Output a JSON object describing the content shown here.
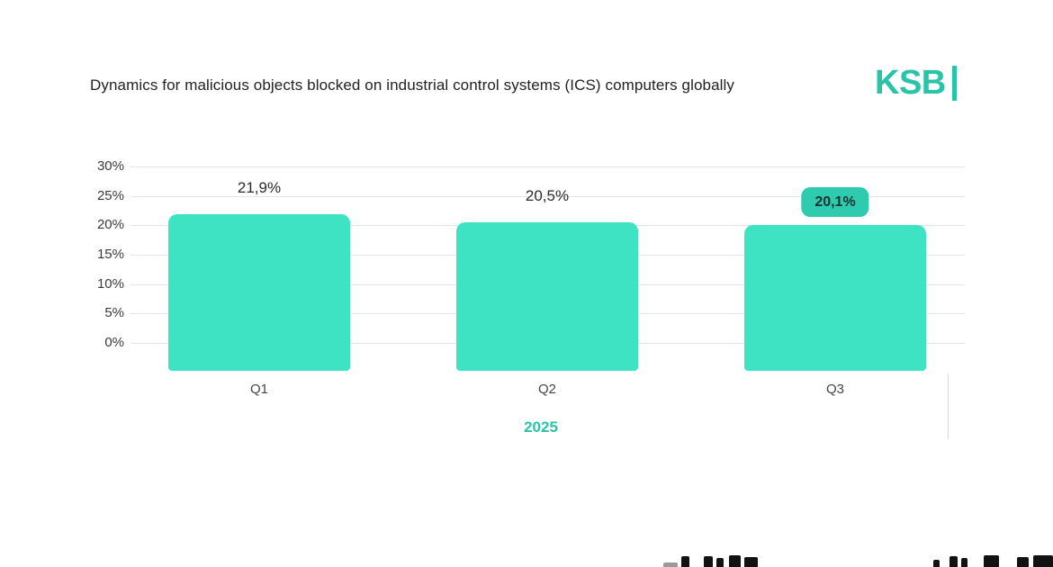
{
  "header": {
    "title": "Dynamics for malicious objects blocked on industrial control systems (ICS) computers globally",
    "logo": "KSB"
  },
  "chart_data": {
    "type": "bar",
    "title": "Dynamics for malicious objects blocked on industrial control systems (ICS) computers globally",
    "categories": [
      "Q1",
      "Q2",
      "Q3"
    ],
    "values": [
      21.9,
      20.5,
      20.1
    ],
    "value_labels": [
      "21,9%",
      "20,5%",
      "20,1%"
    ],
    "highlighted_index": 2,
    "period_label": "2025",
    "xlabel": "",
    "ylabel": "",
    "ylim": [
      0,
      30
    ],
    "yticks": [
      30,
      25,
      20,
      15,
      10,
      5,
      0
    ],
    "ytick_labels": [
      "30%",
      "25%",
      "20%",
      "15%",
      "10%",
      "5%",
      "0%"
    ],
    "grid": true,
    "legend": false,
    "colors": {
      "bar": "#3ee3c3",
      "badge": "#2ecbae",
      "badge_text": "#123231",
      "accent": "#29c3a8",
      "gridline": "#e5e5e5",
      "title_text": "#222225",
      "axis_text": "#3a3a3a"
    }
  }
}
